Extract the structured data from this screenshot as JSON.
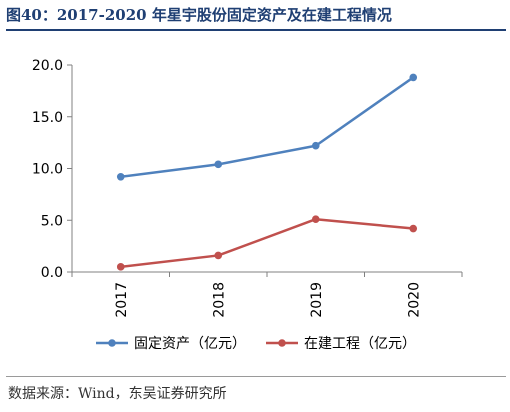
{
  "figure": {
    "title": "图40：2017-2020 年星宇股份固定资产及在建工程情况",
    "source": "数据来源：Wind，东吴证券研究所"
  },
  "chart_data": {
    "type": "line",
    "title": "",
    "xlabel": "",
    "ylabel": "",
    "categories": [
      "2017",
      "2018",
      "2019",
      "2020"
    ],
    "ylim": [
      0,
      20
    ],
    "yticks": [
      "0.0",
      "5.0",
      "10.0",
      "15.0",
      "20.0"
    ],
    "grid": false,
    "legend_position": "bottom",
    "series": [
      {
        "name": "固定资产（亿元）",
        "color": "#4f81bd",
        "values": [
          9.2,
          10.4,
          12.2,
          18.8
        ]
      },
      {
        "name": "在建工程（亿元）",
        "color": "#c0504d",
        "values": [
          0.5,
          1.6,
          5.1,
          4.2
        ]
      }
    ]
  }
}
